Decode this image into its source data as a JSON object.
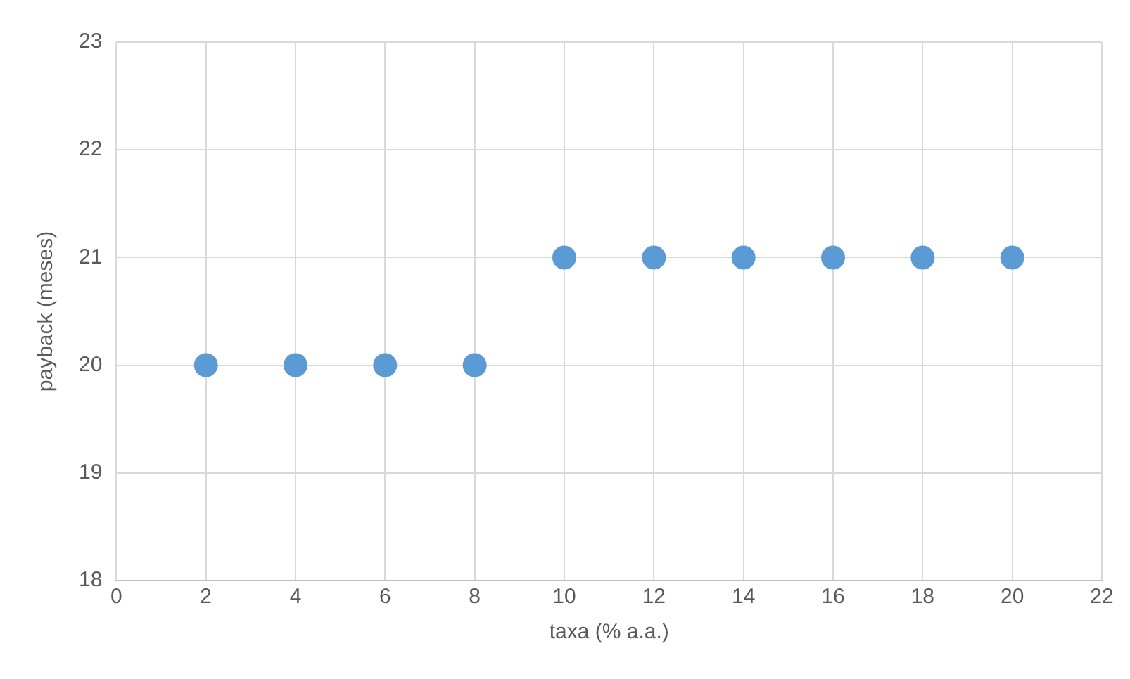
{
  "chart_data": {
    "type": "scatter",
    "xlabel": "taxa (% a.a.)",
    "ylabel": "payback (meses)",
    "x": [
      2,
      4,
      6,
      8,
      10,
      12,
      14,
      16,
      18,
      20
    ],
    "series": [
      {
        "color": "#5b9bd5",
        "values": [
          20,
          20,
          20,
          20,
          21,
          21,
          21,
          21,
          21,
          21
        ]
      }
    ],
    "xlim": [
      0,
      22
    ],
    "xticks": [
      0,
      2,
      4,
      6,
      8,
      10,
      12,
      14,
      16,
      18,
      20,
      22
    ],
    "ylim": [
      18,
      23
    ],
    "yticks": [
      18,
      19,
      20,
      21,
      22,
      23
    ],
    "grid": true,
    "legend": false,
    "marker": "circle"
  }
}
